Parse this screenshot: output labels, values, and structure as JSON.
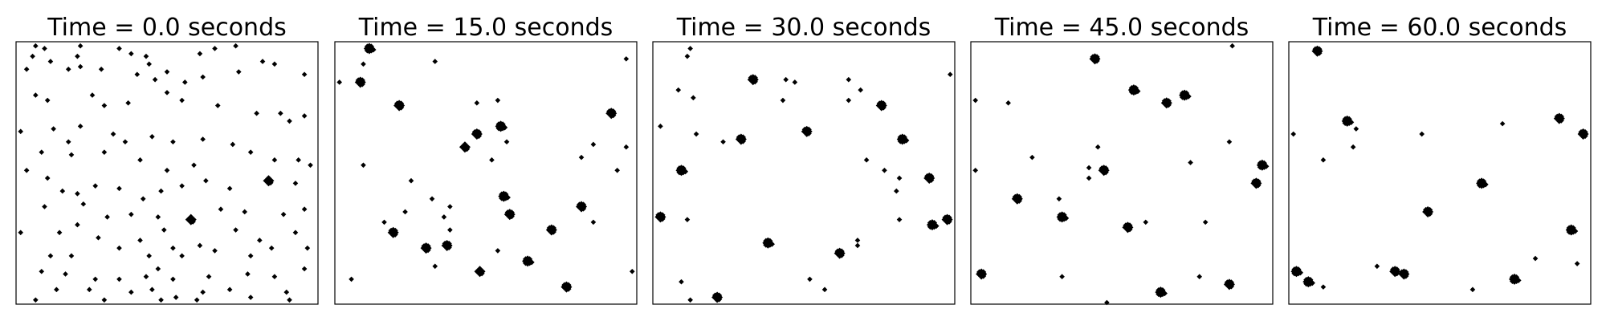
{
  "figure": {
    "background_color": "#ffffff",
    "marker_color": "#000000",
    "marker_shape": "diamond",
    "axes_ticks_visible": false
  },
  "chart_data": [
    {
      "type": "scatter",
      "title": "Time = 0.0 seconds",
      "xlim": [
        0,
        1
      ],
      "ylim": [
        0,
        1
      ],
      "grid": false,
      "clusters": [
        [
          0.06,
          0.99,
          1
        ],
        [
          0.09,
          0.98,
          1
        ],
        [
          0.21,
          0.99,
          1
        ],
        [
          0.66,
          0.98,
          1
        ],
        [
          0.73,
          0.99,
          1
        ],
        [
          0.05,
          0.95,
          1
        ],
        [
          0.11,
          0.93,
          1
        ],
        [
          0.2,
          0.95,
          1
        ],
        [
          0.34,
          0.98,
          1
        ],
        [
          0.38,
          0.96,
          1
        ],
        [
          0.43,
          0.95,
          1
        ],
        [
          0.44,
          0.92,
          1
        ],
        [
          0.61,
          0.96,
          1
        ],
        [
          0.82,
          0.93,
          1
        ],
        [
          0.86,
          0.92,
          1
        ],
        [
          0.03,
          0.9,
          1
        ],
        [
          0.17,
          0.9,
          1
        ],
        [
          0.21,
          0.91,
          1
        ],
        [
          0.28,
          0.9,
          1
        ],
        [
          0.4,
          0.88,
          1
        ],
        [
          0.46,
          0.86,
          1
        ],
        [
          0.5,
          0.89,
          1
        ],
        [
          0.56,
          0.85,
          1
        ],
        [
          0.62,
          0.87,
          1
        ],
        [
          0.74,
          0.89,
          1
        ],
        [
          0.96,
          0.88,
          1
        ],
        [
          0.06,
          0.8,
          1
        ],
        [
          0.1,
          0.78,
          1
        ],
        [
          0.25,
          0.8,
          1
        ],
        [
          0.29,
          0.76,
          1
        ],
        [
          0.37,
          0.77,
          1
        ],
        [
          0.5,
          0.81,
          1
        ],
        [
          0.55,
          0.78,
          1
        ],
        [
          0.67,
          0.76,
          1
        ],
        [
          0.8,
          0.73,
          1
        ],
        [
          0.88,
          0.73,
          1
        ],
        [
          0.91,
          0.7,
          1
        ],
        [
          0.96,
          0.72,
          1
        ],
        [
          0.12,
          0.67,
          1
        ],
        [
          0.17,
          0.62,
          1
        ],
        [
          0.21,
          0.68,
          1
        ],
        [
          0.32,
          0.65,
          1
        ],
        [
          0.36,
          0.62,
          1
        ],
        [
          0.45,
          0.64,
          1
        ],
        [
          0.52,
          0.62,
          1
        ],
        [
          0.62,
          0.63,
          1
        ],
        [
          0.72,
          0.61,
          1
        ],
        [
          0.01,
          0.66,
          1
        ],
        [
          0.08,
          0.58,
          1
        ],
        [
          0.18,
          0.57,
          1
        ],
        [
          0.29,
          0.58,
          1
        ],
        [
          0.41,
          0.55,
          1
        ],
        [
          0.5,
          0.51,
          1
        ],
        [
          0.59,
          0.53,
          1
        ],
        [
          0.78,
          0.58,
          1
        ],
        [
          0.86,
          0.55,
          1
        ],
        [
          0.94,
          0.55,
          1
        ],
        [
          0.98,
          0.53,
          1
        ],
        [
          0.03,
          0.51,
          1
        ],
        [
          0.1,
          0.48,
          1
        ],
        [
          0.15,
          0.43,
          1
        ],
        [
          0.2,
          0.42,
          1
        ],
        [
          0.26,
          0.45,
          1
        ],
        [
          0.34,
          0.44,
          1
        ],
        [
          0.42,
          0.4,
          1
        ],
        [
          0.48,
          0.43,
          1
        ],
        [
          0.55,
          0.45,
          1
        ],
        [
          0.63,
          0.47,
          1
        ],
        [
          0.71,
          0.44,
          1
        ],
        [
          0.84,
          0.47,
          2
        ],
        [
          0.93,
          0.46,
          1
        ],
        [
          0.09,
          0.37,
          1
        ],
        [
          0.22,
          0.38,
          1
        ],
        [
          0.3,
          0.33,
          1
        ],
        [
          0.38,
          0.34,
          1
        ],
        [
          0.47,
          0.33,
          1
        ],
        [
          0.58,
          0.32,
          2
        ],
        [
          0.68,
          0.36,
          1
        ],
        [
          0.76,
          0.35,
          1
        ],
        [
          0.89,
          0.34,
          1
        ],
        [
          0.96,
          0.36,
          1
        ],
        [
          0.14,
          0.27,
          1
        ],
        [
          0.2,
          0.3,
          1
        ],
        [
          0.27,
          0.25,
          1
        ],
        [
          0.41,
          0.24,
          1
        ],
        [
          0.49,
          0.28,
          1
        ],
        [
          0.61,
          0.22,
          1
        ],
        [
          0.73,
          0.28,
          1
        ],
        [
          0.81,
          0.24,
          1
        ],
        [
          0.93,
          0.27,
          1
        ],
        [
          0.01,
          0.27,
          1
        ],
        [
          0.11,
          0.18,
          1
        ],
        [
          0.18,
          0.18,
          1
        ],
        [
          0.34,
          0.21,
          1
        ],
        [
          0.44,
          0.18,
          1
        ],
        [
          0.52,
          0.21,
          1
        ],
        [
          0.55,
          0.18,
          1
        ],
        [
          0.66,
          0.2,
          1
        ],
        [
          0.78,
          0.18,
          1
        ],
        [
          0.85,
          0.21,
          1
        ],
        [
          0.97,
          0.21,
          1
        ],
        [
          0.08,
          0.12,
          1
        ],
        [
          0.16,
          0.11,
          1
        ],
        [
          0.26,
          0.09,
          1
        ],
        [
          0.34,
          0.09,
          1
        ],
        [
          0.43,
          0.1,
          1
        ],
        [
          0.47,
          0.13,
          1
        ],
        [
          0.52,
          0.09,
          1
        ],
        [
          0.64,
          0.1,
          1
        ],
        [
          0.77,
          0.11,
          1
        ],
        [
          0.86,
          0.1,
          1
        ],
        [
          0.96,
          0.13,
          1
        ],
        [
          0.06,
          0.01,
          1
        ],
        [
          0.29,
          0.01,
          1
        ],
        [
          0.48,
          0.01,
          1
        ],
        [
          0.53,
          0.02,
          1
        ],
        [
          0.6,
          0.01,
          1
        ],
        [
          0.91,
          0.01,
          1
        ],
        [
          0.24,
          0.05,
          1
        ],
        [
          0.45,
          0.05,
          1
        ],
        [
          0.62,
          0.04,
          1
        ],
        [
          0.71,
          0.05,
          1
        ],
        [
          0.78,
          0.02,
          1
        ],
        [
          0.9,
          0.04,
          1
        ],
        [
          0.13,
          0.05,
          1
        ],
        [
          0.38,
          0.04,
          1
        ]
      ]
    },
    {
      "type": "scatter",
      "title": "Time = 15.0 seconds",
      "xlim": [
        0,
        1
      ],
      "ylim": [
        0,
        1
      ],
      "grid": false,
      "clusters": [
        [
          0.11,
          0.98,
          4
        ],
        [
          0.09,
          0.92,
          1
        ],
        [
          0.08,
          0.85,
          3
        ],
        [
          0.33,
          0.93,
          1
        ],
        [
          0.97,
          0.94,
          1
        ],
        [
          0.21,
          0.76,
          3
        ],
        [
          0.47,
          0.77,
          1
        ],
        [
          0.54,
          0.78,
          1
        ],
        [
          0.92,
          0.73,
          3
        ],
        [
          0.55,
          0.68,
          4
        ],
        [
          0.47,
          0.65,
          3
        ],
        [
          0.43,
          0.6,
          2
        ],
        [
          0.57,
          0.62,
          1
        ],
        [
          0.09,
          0.53,
          1
        ],
        [
          0.25,
          0.47,
          1
        ],
        [
          0.52,
          0.55,
          1
        ],
        [
          0.82,
          0.56,
          1
        ],
        [
          0.94,
          0.51,
          1
        ],
        [
          0.86,
          0.61,
          1
        ],
        [
          0.97,
          0.6,
          1
        ],
        [
          0.56,
          0.41,
          4
        ],
        [
          0.32,
          0.4,
          1
        ],
        [
          0.38,
          0.37,
          1
        ],
        [
          0.23,
          0.35,
          1
        ],
        [
          0.16,
          0.31,
          1
        ],
        [
          0.19,
          0.27,
          3
        ],
        [
          0.36,
          0.33,
          1
        ],
        [
          0.38,
          0.28,
          1
        ],
        [
          0.58,
          0.34,
          3
        ],
        [
          0.72,
          0.28,
          3
        ],
        [
          0.82,
          0.37,
          3
        ],
        [
          0.86,
          0.31,
          1
        ],
        [
          0.3,
          0.21,
          3
        ],
        [
          0.37,
          0.22,
          3
        ],
        [
          0.54,
          0.2,
          1
        ],
        [
          0.64,
          0.16,
          4
        ],
        [
          0.33,
          0.14,
          1
        ],
        [
          0.48,
          0.12,
          2
        ],
        [
          0.05,
          0.09,
          1
        ],
        [
          0.77,
          0.06,
          3
        ],
        [
          0.99,
          0.12,
          1
        ],
        [
          0.01,
          0.85,
          1
        ]
      ]
    },
    {
      "type": "scatter",
      "title": "Time = 30.0 seconds",
      "xlim": [
        0,
        1
      ],
      "ylim": [
        0,
        1
      ],
      "grid": false,
      "clusters": [
        [
          0.12,
          0.98,
          1
        ],
        [
          0.11,
          0.95,
          1
        ],
        [
          0.33,
          0.86,
          3
        ],
        [
          0.44,
          0.86,
          1
        ],
        [
          0.47,
          0.85,
          1
        ],
        [
          0.65,
          0.86,
          1
        ],
        [
          0.99,
          0.88,
          1
        ],
        [
          0.08,
          0.82,
          1
        ],
        [
          0.13,
          0.79,
          1
        ],
        [
          0.43,
          0.78,
          1
        ],
        [
          0.65,
          0.78,
          1
        ],
        [
          0.69,
          0.82,
          1
        ],
        [
          0.76,
          0.76,
          3
        ],
        [
          0.02,
          0.68,
          1
        ],
        [
          0.14,
          0.65,
          1
        ],
        [
          0.23,
          0.62,
          1
        ],
        [
          0.29,
          0.63,
          3
        ],
        [
          0.51,
          0.66,
          3
        ],
        [
          0.83,
          0.63,
          4
        ],
        [
          0.71,
          0.55,
          1
        ],
        [
          0.77,
          0.51,
          1
        ],
        [
          0.09,
          0.51,
          4
        ],
        [
          0.82,
          0.48,
          1
        ],
        [
          0.92,
          0.48,
          3
        ],
        [
          0.81,
          0.43,
          1
        ],
        [
          0.02,
          0.33,
          3
        ],
        [
          0.11,
          0.32,
          1
        ],
        [
          0.82,
          0.32,
          1
        ],
        [
          0.93,
          0.3,
          4
        ],
        [
          0.98,
          0.32,
          3
        ],
        [
          0.38,
          0.23,
          4
        ],
        [
          0.68,
          0.24,
          1
        ],
        [
          0.62,
          0.19,
          3
        ],
        [
          0.68,
          0.22,
          1
        ],
        [
          0.52,
          0.09,
          1
        ],
        [
          0.57,
          0.05,
          1
        ],
        [
          0.09,
          0.08,
          1
        ],
        [
          0.12,
          0.01,
          1
        ],
        [
          0.21,
          0.02,
          3
        ]
      ]
    },
    {
      "type": "scatter",
      "title": "Time = 45.0 seconds",
      "xlim": [
        0,
        1
      ],
      "ylim": [
        0,
        1
      ],
      "grid": false,
      "clusters": [
        [
          0.41,
          0.94,
          3
        ],
        [
          0.87,
          0.99,
          1
        ],
        [
          0.54,
          0.82,
          4
        ],
        [
          0.65,
          0.77,
          3
        ],
        [
          0.71,
          0.8,
          4
        ],
        [
          0.12,
          0.77,
          1
        ],
        [
          0.01,
          0.78,
          1
        ],
        [
          0.42,
          0.6,
          1
        ],
        [
          0.86,
          0.62,
          1
        ],
        [
          0.97,
          0.53,
          4
        ],
        [
          0.2,
          0.56,
          1
        ],
        [
          0.39,
          0.52,
          1
        ],
        [
          0.44,
          0.51,
          3
        ],
        [
          0.73,
          0.54,
          1
        ],
        [
          0.95,
          0.46,
          3
        ],
        [
          0.39,
          0.48,
          1
        ],
        [
          0.15,
          0.4,
          3
        ],
        [
          0.29,
          0.4,
          1
        ],
        [
          0.3,
          0.33,
          4
        ],
        [
          0.52,
          0.29,
          3
        ],
        [
          0.58,
          0.31,
          1
        ],
        [
          0.78,
          0.31,
          1
        ],
        [
          0.03,
          0.11,
          3
        ],
        [
          0.3,
          0.1,
          1
        ],
        [
          0.63,
          0.04,
          4
        ],
        [
          0.86,
          0.07,
          3
        ],
        [
          0.45,
          0.0,
          1
        ],
        [
          0.76,
          0.1,
          1
        ],
        [
          0.01,
          0.51,
          1
        ]
      ]
    },
    {
      "type": "scatter",
      "title": "Time = 60.0 seconds",
      "xlim": [
        0,
        1
      ],
      "ylim": [
        0,
        1
      ],
      "grid": false,
      "clusters": [
        [
          0.09,
          0.97,
          3
        ],
        [
          0.19,
          0.7,
          4
        ],
        [
          0.22,
          0.67,
          1
        ],
        [
          0.01,
          0.65,
          1
        ],
        [
          0.44,
          0.65,
          1
        ],
        [
          0.71,
          0.69,
          1
        ],
        [
          0.9,
          0.71,
          3
        ],
        [
          0.98,
          0.65,
          3
        ],
        [
          0.21,
          0.6,
          1
        ],
        [
          0.11,
          0.55,
          1
        ],
        [
          0.64,
          0.46,
          4
        ],
        [
          0.46,
          0.35,
          3
        ],
        [
          0.94,
          0.28,
          4
        ],
        [
          0.02,
          0.12,
          4
        ],
        [
          0.06,
          0.08,
          4
        ],
        [
          0.11,
          0.06,
          1
        ],
        [
          0.29,
          0.14,
          1
        ],
        [
          0.35,
          0.12,
          3
        ],
        [
          0.38,
          0.11,
          3
        ],
        [
          0.61,
          0.05,
          1
        ],
        [
          0.75,
          0.09,
          4
        ],
        [
          0.82,
          0.17,
          1
        ],
        [
          0.96,
          0.15,
          1
        ]
      ]
    }
  ]
}
